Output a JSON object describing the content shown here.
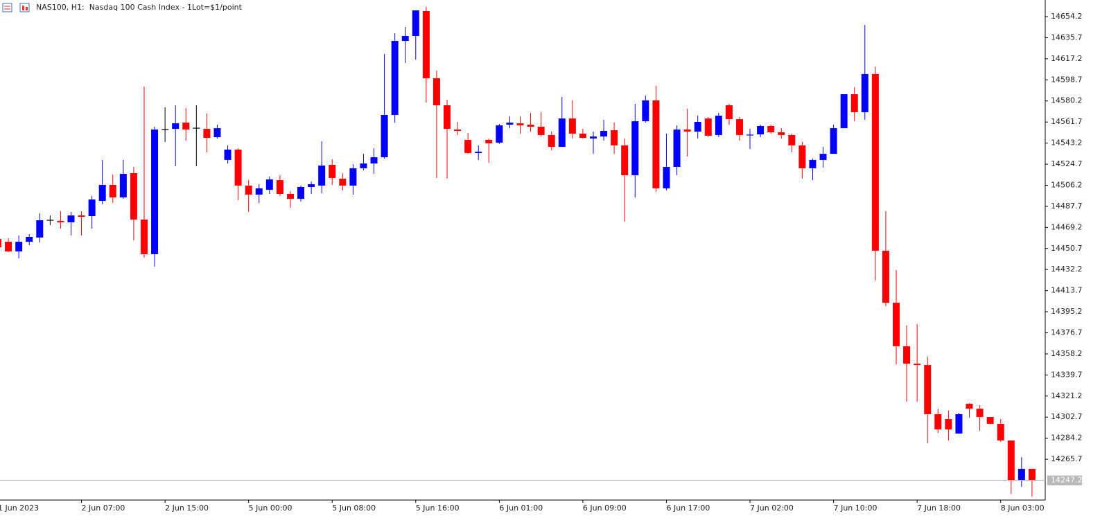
{
  "chart_data": {
    "type": "candlestick",
    "title": "NAS100, H1:  Nasdaq 100 Cash Index - 1Lot=$1/point",
    "categories": [
      "1 Jun 2023",
      null,
      null,
      null,
      null,
      null,
      null,
      null,
      "2 Jun 07:00",
      null,
      null,
      null,
      null,
      null,
      null,
      null,
      "2 Jun 15:00",
      null,
      null,
      null,
      null,
      null,
      null,
      null,
      "5 Jun 00:00",
      null,
      null,
      null,
      null,
      null,
      null,
      null,
      "5 Jun 08:00",
      null,
      null,
      null,
      null,
      null,
      null,
      null,
      "5 Jun 16:00",
      null,
      null,
      null,
      null,
      null,
      null,
      null,
      "6 Jun 01:00",
      null,
      null,
      null,
      null,
      null,
      null,
      null,
      "6 Jun 09:00",
      null,
      null,
      null,
      null,
      null,
      null,
      null,
      "6 Jun 17:00",
      null,
      null,
      null,
      null,
      null,
      null,
      null,
      "7 Jun 02:00",
      null,
      null,
      null,
      null,
      null,
      null,
      null,
      "7 Jun 10:00",
      null,
      null,
      null,
      null,
      null,
      null,
      null,
      "7 Jun 18:00",
      null,
      null,
      null,
      null,
      null,
      null,
      null,
      "8 Jun 03:00",
      null,
      null,
      null
    ],
    "open": [
      14459.1,
      14456.6,
      14448.1,
      14456.6,
      14460.3,
      14475.5,
      14474.9,
      14473.7,
      14479.7,
      14479.1,
      14492.5,
      14506.5,
      14495.5,
      14516.8,
      14476.1,
      14445.7,
      14555.1,
      14555.7,
      14561.2,
      14556.3,
      14555.7,
      14548.4,
      14528.4,
      14537.5,
      14505.9,
      14498.0,
      14502.2,
      14510.7,
      14498.6,
      14494.3,
      14504.7,
      14505.9,
      14524.1,
      14512.0,
      14505.9,
      14521.1,
      14525.3,
      14530.8,
      14567.9,
      14632.9,
      14637.2,
      14659.1,
      14600.1,
      14576.4,
      14555.1,
      14546.0,
      14534.5,
      14546.0,
      14543.6,
      14559.4,
      14560.6,
      14559.4,
      14557.6,
      14550.3,
      14539.9,
      14564.8,
      14551.5,
      14547.2,
      14549.0,
      14554.5,
      14541.2,
      14515.0,
      14562.4,
      14580.7,
      14503.5,
      14522.3,
      14555.1,
      14553.3,
      14564.8,
      14550.3,
      14576.4,
      14564.2,
      14550.3,
      14550.9,
      14558.2,
      14552.7,
      14550.3,
      14541.2,
      14521.1,
      14528.4,
      14533.8,
      14556.3,
      14586.1,
      14570.3,
      14603.8,
      14448.7,
      14403.1,
      14364.9,
      14349.6,
      14348.4,
      14305.3,
      14301.0,
      14288.3,
      14314.4,
      14310.1,
      14302.8,
      14296.8,
      14282.2,
      14246.9,
      14257.3
    ],
    "high": [
      14460.9,
      14459.7,
      14462.1,
      14463.3,
      14481.6,
      14479.7,
      14483.4,
      14482.8,
      14483.4,
      14496.8,
      14528.4,
      14515.6,
      14528.4,
      14522.3,
      14592.8,
      14557.6,
      14574.6,
      14576.4,
      14574.0,
      14576.4,
      14569.1,
      14559.4,
      14541.2,
      14538.7,
      14510.7,
      14507.1,
      14513.8,
      14515.0,
      14501.0,
      14505.9,
      14509.5,
      14544.8,
      14529.0,
      14516.8,
      14524.7,
      14533.8,
      14538.7,
      14621.4,
      14639.6,
      14645.1,
      14659.7,
      14662.7,
      14606.8,
      14581.3,
      14561.8,
      14552.1,
      14541.2,
      14547.2,
      14560.0,
      14566.7,
      14566.7,
      14569.7,
      14570.3,
      14553.3,
      14583.7,
      14580.7,
      14555.7,
      14553.3,
      14563.6,
      14561.2,
      14547.2,
      14577.6,
      14584.9,
      14593.4,
      14551.5,
      14558.8,
      14573.4,
      14567.3,
      14566.1,
      14569.7,
      14577.6,
      14566.1,
      14555.7,
      14559.4,
      14559.4,
      14556.3,
      14551.5,
      14544.2,
      14529.6,
      14539.9,
      14559.4,
      14586.1,
      14592.2,
      14646.9,
      14610.4,
      14483.4,
      14431.7,
      14383.1,
      14384.3,
      14355.7,
      14310.1,
      14308.3,
      14306.5,
      14315.0,
      14313.2,
      14302.8,
      14301.0,
      14282.2,
      14267.6,
      14257.3
    ],
    "low": [
      14448.7,
      14447.5,
      14442.1,
      14453.6,
      14456.0,
      14471.2,
      14468.2,
      14462.1,
      14462.1,
      14468.2,
      14489.5,
      14490.7,
      14494.3,
      14457.9,
      14442.7,
      14434.8,
      14544.2,
      14522.9,
      14545.4,
      14522.9,
      14535.1,
      14547.2,
      14525.3,
      14493.1,
      14482.8,
      14490.7,
      14498.6,
      14496.8,
      14486.4,
      14491.9,
      14498.6,
      14499.2,
      14506.5,
      14501.6,
      14498.0,
      14519.3,
      14516.2,
      14529.6,
      14561.2,
      14613.5,
      14616.5,
      14578.8,
      14512.6,
      14512.0,
      14550.3,
      14533.8,
      14528.4,
      14525.9,
      14542.4,
      14556.3,
      14551.5,
      14553.3,
      14549.0,
      14536.9,
      14539.9,
      14547.2,
      14547.2,
      14533.8,
      14545.4,
      14533.8,
      14474.3,
      14495.5,
      14561.2,
      14500.4,
      14501.6,
      14515.0,
      14531.4,
      14547.2,
      14548.4,
      14548.4,
      14559.4,
      14545.4,
      14538.1,
      14548.4,
      14551.5,
      14547.2,
      14535.1,
      14512.0,
      14510.7,
      14521.7,
      14533.8,
      14556.3,
      14562.4,
      14563.6,
      14422.6,
      14400.1,
      14349.0,
      14316.2,
      14316.2,
      14279.7,
      14288.9,
      14282.2,
      14288.3,
      14302.2,
      14290.7,
      14296.2,
      14281.0,
      14235.4,
      14241.5,
      14232.9
    ],
    "close": [
      14451.8,
      14448.1,
      14456.6,
      14460.9,
      14475.5,
      14475.5,
      14473.7,
      14479.7,
      14478.5,
      14493.7,
      14506.5,
      14495.5,
      14516.2,
      14476.1,
      14445.7,
      14555.1,
      14555.1,
      14560.6,
      14555.1,
      14556.3,
      14547.8,
      14556.3,
      14537.5,
      14505.9,
      14498.0,
      14503.5,
      14511.3,
      14498.6,
      14494.3,
      14504.7,
      14507.1,
      14523.5,
      14512.6,
      14505.9,
      14521.1,
      14525.3,
      14530.8,
      14567.9,
      14632.9,
      14637.2,
      14659.7,
      14600.1,
      14576.4,
      14555.7,
      14553.9,
      14534.5,
      14535.7,
      14543.0,
      14558.8,
      14561.2,
      14558.8,
      14557.6,
      14550.3,
      14539.9,
      14564.8,
      14551.5,
      14547.8,
      14549.0,
      14553.9,
      14541.2,
      14515.0,
      14562.4,
      14580.7,
      14503.5,
      14522.3,
      14555.1,
      14553.3,
      14561.8,
      14549.7,
      14567.3,
      14564.2,
      14550.3,
      14550.9,
      14558.2,
      14552.7,
      14550.3,
      14541.2,
      14521.1,
      14528.4,
      14533.8,
      14556.3,
      14586.1,
      14570.3,
      14603.8,
      14448.7,
      14403.1,
      14364.9,
      14349.6,
      14348.4,
      14305.3,
      14291.9,
      14291.9,
      14305.3,
      14310.1,
      14302.8,
      14296.8,
      14282.2,
      14246.9,
      14257.3,
      14247.2
    ],
    "up_color": "#0000ff",
    "down_color": "#ff0000",
    "doji_color": "#000000",
    "ylim": [
      14229.9,
      14668.8
    ],
    "yticks": [
      14265.7,
      14284.2,
      14302.7,
      14321.2,
      14339.7,
      14358.2,
      14376.7,
      14395.2,
      14413.7,
      14432.2,
      14450.7,
      14469.2,
      14487.7,
      14506.2,
      14524.7,
      14543.2,
      14561.7,
      14580.2,
      14598.7,
      14617.2,
      14635.7,
      14654.2
    ],
    "last_price": 14247.2
  }
}
